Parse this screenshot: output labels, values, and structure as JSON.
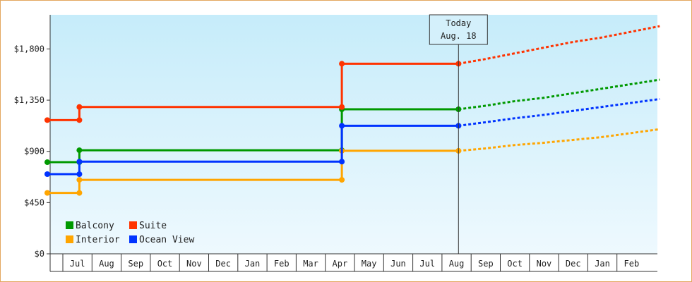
{
  "chart_data": {
    "type": "line",
    "title": "",
    "xlabel": "",
    "ylabel": "",
    "ylim": [
      0,
      2100
    ],
    "yticks": [
      {
        "value": 0,
        "label": "$0"
      },
      {
        "value": 450,
        "label": "$450"
      },
      {
        "value": 900,
        "label": "$900"
      },
      {
        "value": 1350,
        "label": "$1,350"
      },
      {
        "value": 1800,
        "label": "$1,800"
      }
    ],
    "months": [
      "Jul",
      "Aug",
      "Sep",
      "Oct",
      "Nov",
      "Dec",
      "Jan",
      "Feb",
      "Mar",
      "Apr",
      "May",
      "Jun",
      "Jul",
      "Aug",
      "Sep",
      "Oct",
      "Nov",
      "Dec",
      "Jan",
      "Feb"
    ],
    "x_domain": [
      "Jun 15, Yr1",
      "Mar 15, Yr3"
    ],
    "today": {
      "line1": "Today",
      "line2": "Aug. 18",
      "date": "Aug 18, Yr2"
    },
    "grid": false,
    "legend_position": "bottom-left",
    "series": [
      {
        "name": "Balcony",
        "color": "#009900",
        "points": [
          [
            "Jun 15, Yr1",
            805
          ],
          [
            "Jul 18, Yr1",
            805
          ],
          [
            "Jul 18, Yr1",
            910
          ],
          [
            "Apr 18, Yr2",
            910
          ],
          [
            "Apr 18, Yr2",
            1270
          ],
          [
            "Aug 18, Yr2",
            1270
          ]
        ],
        "forecast": [
          [
            "Aug 18, Yr2",
            1270
          ],
          [
            "Sep 15, Yr2",
            1300
          ],
          [
            "Oct 15, Yr2",
            1340
          ],
          [
            "Nov 15, Yr2",
            1370
          ],
          [
            "Dec 15, Yr2",
            1410
          ],
          [
            "Jan 15, Yr3",
            1450
          ],
          [
            "Feb 15, Yr3",
            1490
          ],
          [
            "Mar 15, Yr3",
            1530
          ]
        ]
      },
      {
        "name": "Suite",
        "color": "#ff3300",
        "points": [
          [
            "Jun 15, Yr1",
            1175
          ],
          [
            "Jul 18, Yr1",
            1175
          ],
          [
            "Jul 18, Yr1",
            1290
          ],
          [
            "Apr 18, Yr2",
            1290
          ],
          [
            "Apr 18, Yr2",
            1670
          ],
          [
            "Aug 18, Yr2",
            1670
          ]
        ],
        "forecast": [
          [
            "Aug 18, Yr2",
            1670
          ],
          [
            "Sep 15, Yr2",
            1710
          ],
          [
            "Oct 15, Yr2",
            1760
          ],
          [
            "Nov 15, Yr2",
            1810
          ],
          [
            "Dec 15, Yr2",
            1860
          ],
          [
            "Jan 15, Yr3",
            1900
          ],
          [
            "Feb 15, Yr3",
            1950
          ],
          [
            "Mar 15, Yr3",
            2000
          ]
        ]
      },
      {
        "name": "Interior",
        "color": "#ffa500",
        "points": [
          [
            "Jun 15, Yr1",
            535
          ],
          [
            "Jul 18, Yr1",
            535
          ],
          [
            "Jul 18, Yr1",
            650
          ],
          [
            "Apr 18, Yr2",
            650
          ],
          [
            "Apr 18, Yr2",
            905
          ],
          [
            "Aug 18, Yr2",
            905
          ]
        ],
        "forecast": [
          [
            "Aug 18, Yr2",
            905
          ],
          [
            "Sep 15, Yr2",
            925
          ],
          [
            "Oct 15, Yr2",
            955
          ],
          [
            "Nov 15, Yr2",
            975
          ],
          [
            "Dec 15, Yr2",
            1000
          ],
          [
            "Jan 15, Yr3",
            1025
          ],
          [
            "Feb 15, Yr3",
            1060
          ],
          [
            "Mar 15, Yr3",
            1095
          ]
        ]
      },
      {
        "name": "Ocean View",
        "color": "#0033ff",
        "points": [
          [
            "Jun 15, Yr1",
            700
          ],
          [
            "Jul 18, Yr1",
            700
          ],
          [
            "Jul 18, Yr1",
            810
          ],
          [
            "Apr 18, Yr2",
            810
          ],
          [
            "Apr 18, Yr2",
            1125
          ],
          [
            "Aug 18, Yr2",
            1125
          ]
        ],
        "forecast": [
          [
            "Aug 18, Yr2",
            1125
          ],
          [
            "Sep 15, Yr2",
            1155
          ],
          [
            "Oct 15, Yr2",
            1190
          ],
          [
            "Nov 15, Yr2",
            1220
          ],
          [
            "Dec 15, Yr2",
            1255
          ],
          [
            "Jan 15, Yr3",
            1290
          ],
          [
            "Feb 15, Yr3",
            1325
          ],
          [
            "Mar 15, Yr3",
            1360
          ]
        ]
      }
    ],
    "legend": [
      {
        "name": "Balcony",
        "color": "#009900"
      },
      {
        "name": "Suite",
        "color": "#ff3300"
      },
      {
        "name": "Interior",
        "color": "#ffa500"
      },
      {
        "name": "Ocean View",
        "color": "#0033ff"
      }
    ]
  }
}
